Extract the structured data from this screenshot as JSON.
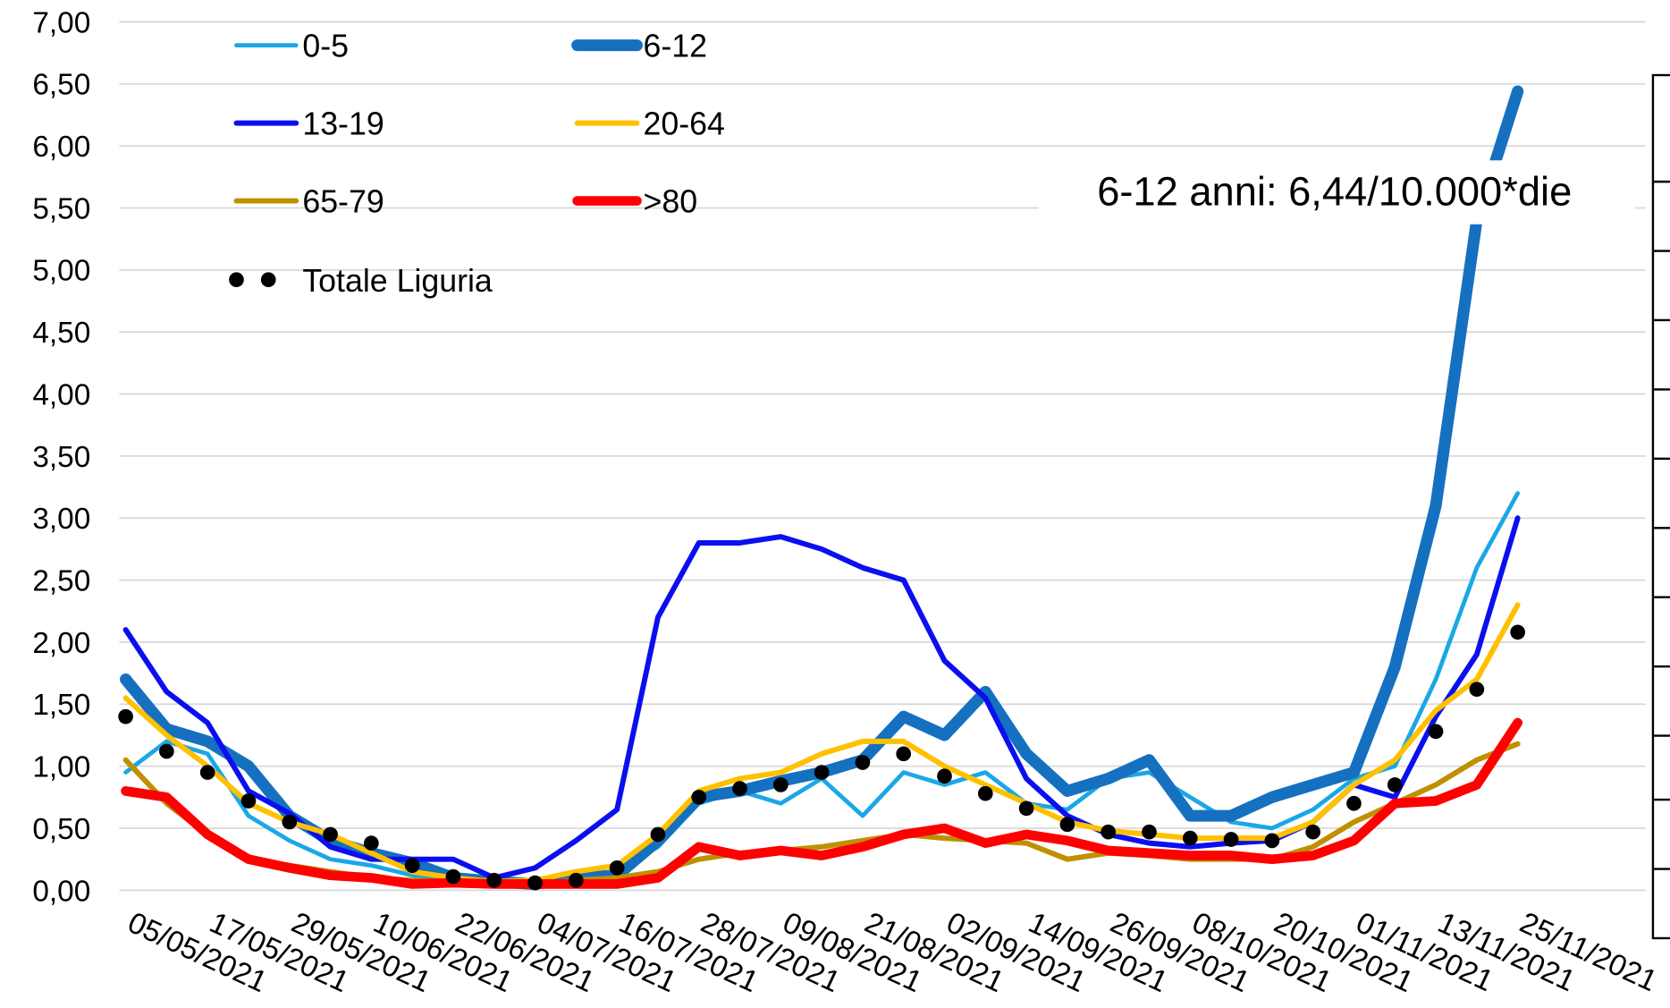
{
  "chart_data": {
    "type": "line",
    "annotation": "6-12 anni: 6,44/10.000*die",
    "categories": [
      "05/05/2021",
      null,
      "17/05/2021",
      null,
      "29/05/2021",
      null,
      "10/06/2021",
      null,
      "22/06/2021",
      null,
      "04/07/2021",
      null,
      "16/07/2021",
      null,
      "28/07/2021",
      null,
      "09/08/2021",
      null,
      "21/08/2021",
      null,
      "02/09/2021",
      null,
      "14/09/2021",
      null,
      "26/09/2021",
      null,
      "08/10/2021",
      null,
      "20/10/2021",
      null,
      "01/11/2021",
      null,
      "13/11/2021",
      null,
      "25/11/2021"
    ],
    "ylim": [
      0,
      7
    ],
    "yticks": [
      {
        "value": 0,
        "label": "0,00"
      },
      {
        "value": 0.5,
        "label": "0,50"
      },
      {
        "value": 1,
        "label": "1,00"
      },
      {
        "value": 1.5,
        "label": "1,50"
      },
      {
        "value": 2,
        "label": "2,00"
      },
      {
        "value": 2.5,
        "label": "2,50"
      },
      {
        "value": 3,
        "label": "3,00"
      },
      {
        "value": 3.5,
        "label": "3,50"
      },
      {
        "value": 4,
        "label": "4,00"
      },
      {
        "value": 4.5,
        "label": "4,50"
      },
      {
        "value": 5,
        "label": "5,00"
      },
      {
        "value": 5.5,
        "label": "5,50"
      },
      {
        "value": 6,
        "label": "6,00"
      },
      {
        "value": 6.5,
        "label": "6,50"
      },
      {
        "value": 7,
        "label": "7,00"
      }
    ],
    "grid": true,
    "series": [
      {
        "name": "0-5",
        "color": "#1aa7e6",
        "width": 4,
        "values": [
          0.95,
          1.2,
          1.1,
          0.6,
          0.4,
          0.25,
          0.2,
          0.12,
          0.08,
          0.05,
          0.05,
          0.1,
          0.15,
          0.35,
          0.7,
          0.8,
          0.7,
          0.9,
          0.6,
          0.95,
          0.85,
          0.95,
          0.7,
          0.65,
          0.9,
          0.95,
          0.75,
          0.55,
          0.5,
          0.65,
          0.9,
          1.0,
          1.7,
          2.6,
          3.2
        ]
      },
      {
        "name": "6-12",
        "color": "#1570c0",
        "width": 11,
        "values": [
          1.7,
          1.3,
          1.2,
          1.0,
          0.6,
          0.4,
          0.3,
          0.22,
          0.1,
          0.07,
          0.05,
          0.1,
          0.12,
          0.4,
          0.75,
          0.8,
          0.88,
          0.95,
          1.05,
          1.4,
          1.25,
          1.6,
          1.1,
          0.8,
          0.9,
          1.05,
          0.6,
          0.6,
          0.75,
          0.85,
          0.95,
          1.8,
          3.1,
          5.4,
          6.44
        ]
      },
      {
        "name": "13-19",
        "color": "#0a0ff0",
        "width": 5,
        "values": [
          2.1,
          1.6,
          1.35,
          0.8,
          0.62,
          0.35,
          0.25,
          0.25,
          0.25,
          0.1,
          0.18,
          0.4,
          0.65,
          2.2,
          2.8,
          2.8,
          2.85,
          2.75,
          2.6,
          2.5,
          1.85,
          1.55,
          0.9,
          0.6,
          0.45,
          0.38,
          0.35,
          0.38,
          0.4,
          0.55,
          0.85,
          0.75,
          1.4,
          1.9,
          3.0
        ]
      },
      {
        "name": "20-64",
        "color": "#ffc000",
        "width": 5,
        "values": [
          1.55,
          1.25,
          1.0,
          0.7,
          0.55,
          0.45,
          0.3,
          0.15,
          0.1,
          0.07,
          0.08,
          0.15,
          0.2,
          0.45,
          0.8,
          0.9,
          0.95,
          1.1,
          1.2,
          1.2,
          1.0,
          0.85,
          0.7,
          0.55,
          0.48,
          0.45,
          0.42,
          0.42,
          0.42,
          0.55,
          0.85,
          1.05,
          1.45,
          1.7,
          2.3
        ]
      },
      {
        "name": "65-79",
        "color": "#bf9000",
        "width": 5,
        "values": [
          1.05,
          0.7,
          0.45,
          0.25,
          0.2,
          0.15,
          0.1,
          0.08,
          0.07,
          0.05,
          0.05,
          0.08,
          0.1,
          0.15,
          0.25,
          0.3,
          0.32,
          0.35,
          0.4,
          0.45,
          0.42,
          0.4,
          0.38,
          0.25,
          0.3,
          0.28,
          0.25,
          0.25,
          0.25,
          0.35,
          0.55,
          0.7,
          0.85,
          1.05,
          1.18
        ]
      },
      {
        "name": ">80",
        "color": "#ff0000",
        "width": 9,
        "values": [
          0.8,
          0.75,
          0.45,
          0.25,
          0.18,
          0.12,
          0.1,
          0.05,
          0.06,
          0.05,
          0.05,
          0.05,
          0.05,
          0.1,
          0.35,
          0.28,
          0.32,
          0.28,
          0.35,
          0.45,
          0.5,
          0.38,
          0.45,
          0.4,
          0.32,
          0.3,
          0.28,
          0.28,
          0.25,
          0.28,
          0.4,
          0.7,
          0.72,
          0.85,
          1.35
        ]
      },
      {
        "name": "Totale Liguria",
        "color": "#000000",
        "markers": true,
        "values": [
          1.4,
          1.12,
          0.95,
          0.72,
          0.55,
          0.45,
          0.38,
          0.2,
          0.11,
          0.08,
          0.06,
          0.08,
          0.18,
          0.45,
          0.75,
          0.82,
          0.85,
          0.95,
          1.03,
          1.1,
          0.92,
          0.78,
          0.66,
          0.53,
          0.47,
          0.47,
          0.42,
          0.41,
          0.4,
          0.47,
          0.7,
          0.85,
          1.28,
          1.62,
          2.08
        ]
      }
    ]
  }
}
